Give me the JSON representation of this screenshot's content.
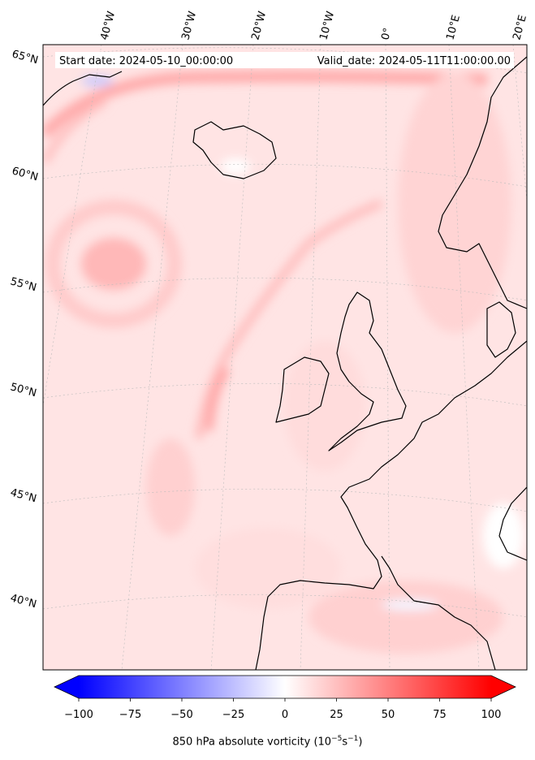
{
  "header": {
    "start_date": "Start date: 2024-05-10_00:00:00",
    "valid_date": "Valid_date: 2024-05-11T11:00:00.00"
  },
  "map": {
    "projection": "lambert-conformal",
    "longitude_labels": [
      "40°W",
      "30°W",
      "20°W",
      "10°W",
      "0°",
      "10°E",
      "20°E"
    ],
    "latitude_labels": [
      "65°N",
      "60°N",
      "55°N",
      "50°N",
      "45°N",
      "40°N"
    ],
    "gridlines": true,
    "field_colors": {
      "light": "#ffe2e2",
      "mid": "#ffc4c4",
      "strong": "#ff8a8a",
      "land_line": "#000000"
    }
  },
  "colorbar": {
    "min": -100,
    "max": 100,
    "ticks": [
      "−100",
      "−75",
      "−50",
      "−25",
      "0",
      "25",
      "50",
      "75",
      "100"
    ],
    "cmap": "bwr",
    "extend": "both",
    "label_text": "850 hPa absolute vorticity (10",
    "label_exp1": "−5",
    "label_mid": "s",
    "label_exp2": "−1",
    "label_end": ")"
  }
}
